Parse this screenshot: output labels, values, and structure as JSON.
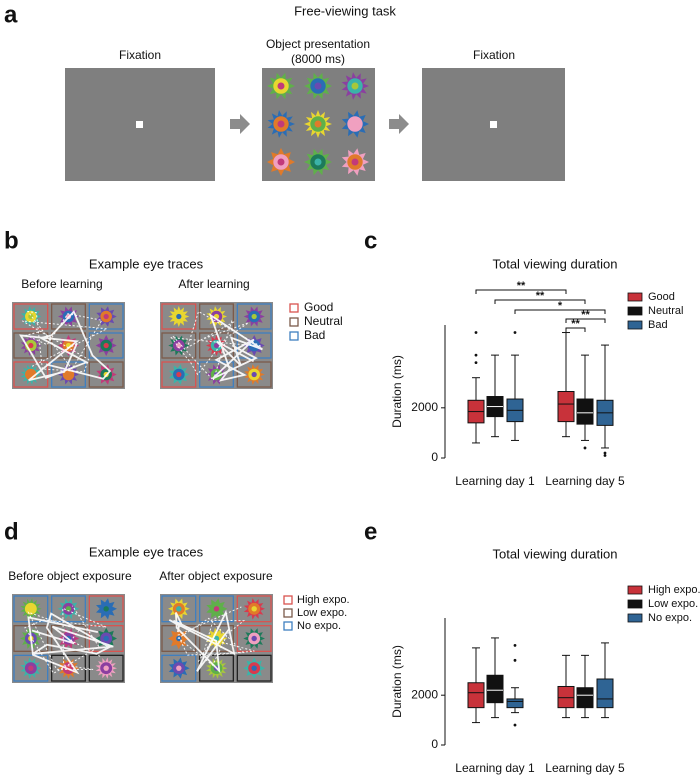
{
  "figure": {
    "panel_a": {
      "label": "a",
      "title": "Free-viewing task",
      "screen_1": "Fixation",
      "screen_2": "Object presentation",
      "screen_2_duration": "(8000 ms)",
      "screen_3": "Fixation"
    },
    "panel_b": {
      "label": "b",
      "title": "Example eye traces",
      "left": "Before learning",
      "right": "After learning",
      "legend": [
        "Good",
        "Neutral",
        "Bad"
      ]
    },
    "panel_c": {
      "label": "c"
    },
    "panel_d": {
      "label": "d",
      "title": "Example eye traces",
      "left": "Before object exposure",
      "right": "After object exposure",
      "legend": [
        "High expo.",
        "Low expo.",
        "No expo."
      ]
    },
    "panel_e": {
      "label": "e"
    }
  },
  "chart_data": [
    {
      "type": "box",
      "title": "Total viewing duration",
      "ylabel": "Duration (ms)",
      "categories": [
        "Learning day 1",
        "Learning day 5"
      ],
      "ylim": [
        0,
        5300
      ],
      "yticks": [
        0,
        2000
      ],
      "legend": "upper right",
      "series": [
        {
          "name": "Good",
          "color": "#c8323a",
          "boxes": [
            {
              "min": 600,
              "q1": 1400,
              "median": 1850,
              "q3": 2300,
              "max": 3200,
              "outliers": [
                3800,
                4100,
                5000
              ]
            },
            {
              "min": 850,
              "q1": 1450,
              "median": 2150,
              "q3": 2650,
              "max": 5000
            }
          ]
        },
        {
          "name": "Neutral",
          "color": "#111111",
          "boxes": [
            {
              "min": 850,
              "q1": 1650,
              "median": 2050,
              "q3": 2450,
              "max": 4100
            },
            {
              "min": 700,
              "q1": 1350,
              "median": 1800,
              "q3": 2350,
              "max": 4100,
              "outliers": [
                400
              ]
            }
          ]
        },
        {
          "name": "Bad",
          "color": "#2f6494",
          "boxes": [
            {
              "min": 700,
              "q1": 1450,
              "median": 1900,
              "q3": 2350,
              "max": 4100,
              "outliers": [
                5000
              ]
            },
            {
              "min": 400,
              "q1": 1300,
              "median": 1800,
              "q3": 2300,
              "max": 4500,
              "outliers": [
                200,
                100
              ]
            }
          ]
        }
      ],
      "annotations": [
        "**",
        "**",
        "*",
        "**",
        "**"
      ]
    },
    {
      "type": "box",
      "title": "Total viewing duration",
      "ylabel": "Duration (ms)",
      "categories": [
        "Learning day 1",
        "Learning day 5"
      ],
      "ylim": [
        0,
        5100
      ],
      "yticks": [
        0,
        2000
      ],
      "legend": "upper right",
      "series": [
        {
          "name": "High expo.",
          "color": "#c8323a",
          "boxes": [
            {
              "min": 900,
              "q1": 1500,
              "median": 2100,
              "q3": 2500,
              "max": 3900
            },
            {
              "min": 1100,
              "q1": 1500,
              "median": 1900,
              "q3": 2350,
              "max": 3600
            }
          ]
        },
        {
          "name": "Low expo.",
          "color": "#111111",
          "boxes": [
            {
              "min": 1100,
              "q1": 1700,
              "median": 2200,
              "q3": 2800,
              "max": 4300
            },
            {
              "min": 1100,
              "q1": 1500,
              "median": 2000,
              "q3": 2300,
              "max": 3600
            }
          ]
        },
        {
          "name": "No expo.",
          "color": "#2f6494",
          "boxes": [
            {
              "min": 1300,
              "q1": 1500,
              "median": 1750,
              "q3": 1850,
              "max": 2300,
              "outliers": [
                4000,
                3400,
                800
              ]
            },
            {
              "min": 1100,
              "q1": 1500,
              "median": 1850,
              "q3": 2650,
              "max": 4100
            }
          ]
        }
      ]
    }
  ]
}
